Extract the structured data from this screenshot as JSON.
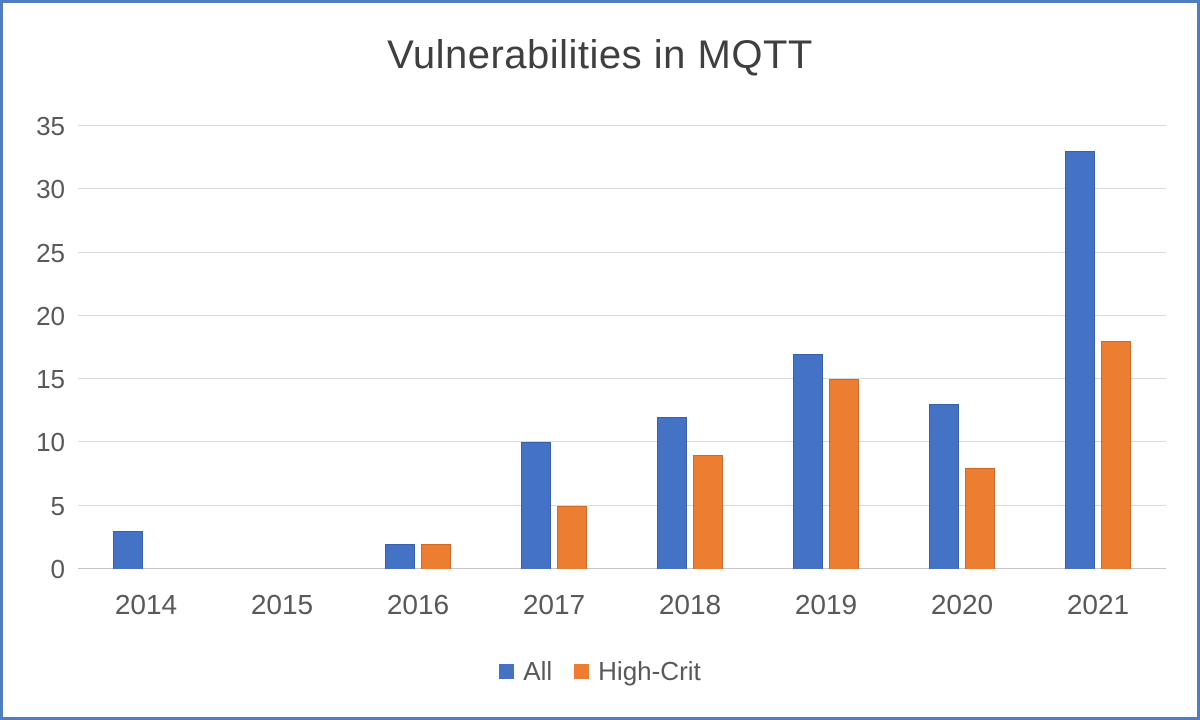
{
  "window": {
    "border_color": "#4f7dc2",
    "background": "#ffffff"
  },
  "chart_data": {
    "type": "bar",
    "title": "Vulnerabilities in MQTT",
    "categories": [
      "2014",
      "2015",
      "2016",
      "2017",
      "2018",
      "2019",
      "2020",
      "2021"
    ],
    "series": [
      {
        "name": "All",
        "color": "#4472c4",
        "values": [
          3,
          0,
          2,
          10,
          12,
          17,
          13,
          33
        ]
      },
      {
        "name": "High-Crit",
        "color": "#ed7d31",
        "values": [
          0,
          0,
          2,
          5,
          9,
          15,
          8,
          18
        ]
      }
    ],
    "xlabel": "",
    "ylabel": "",
    "ylim": [
      0,
      35
    ],
    "yticks": [
      0,
      5,
      10,
      15,
      20,
      25,
      30,
      35
    ],
    "grid": true,
    "legend_position": "bottom",
    "styles": {
      "gridline_color": "#d9d9d9",
      "zero_line_color": "#c6c6c6",
      "axis_text_color": "#595959",
      "title_color": "#3f3f3f"
    }
  }
}
